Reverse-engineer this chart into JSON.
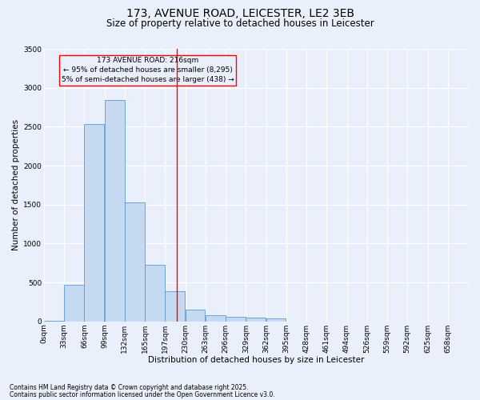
{
  "title": "173, AVENUE ROAD, LEICESTER, LE2 3EB",
  "subtitle": "Size of property relative to detached houses in Leicester",
  "xlabel": "Distribution of detached houses by size in Leicester",
  "ylabel": "Number of detached properties",
  "footnote1": "Contains HM Land Registry data © Crown copyright and database right 2025.",
  "footnote2": "Contains public sector information licensed under the Open Government Licence v3.0.",
  "bar_labels": [
    "0sqm",
    "33sqm",
    "66sqm",
    "99sqm",
    "132sqm",
    "165sqm",
    "197sqm",
    "230sqm",
    "263sqm",
    "296sqm",
    "329sqm",
    "362sqm",
    "395sqm",
    "428sqm",
    "461sqm",
    "494sqm",
    "526sqm",
    "559sqm",
    "592sqm",
    "625sqm",
    "658sqm"
  ],
  "bar_values": [
    10,
    470,
    2530,
    2840,
    1530,
    730,
    390,
    150,
    75,
    55,
    45,
    40,
    0,
    0,
    0,
    0,
    0,
    0,
    0,
    0,
    0
  ],
  "bar_color": "#c5d9f0",
  "bar_edge_color": "#5b9bd5",
  "property_line_color": "red",
  "annotation_title": "173 AVENUE ROAD: 216sqm",
  "annotation_line1": "← 95% of detached houses are smaller (8,295)",
  "annotation_line2": "5% of semi-detached houses are larger (438) →",
  "annotation_box_color": "red",
  "ylim": [
    0,
    3500
  ],
  "bin_width": 33,
  "property_bin_index": 6,
  "background_color": "#eaf0fb",
  "grid_color": "#ffffff",
  "title_fontsize": 10,
  "subtitle_fontsize": 8.5,
  "axis_label_fontsize": 7.5,
  "tick_fontsize": 6.5,
  "annotation_fontsize": 6.5,
  "footnote_fontsize": 5.5
}
